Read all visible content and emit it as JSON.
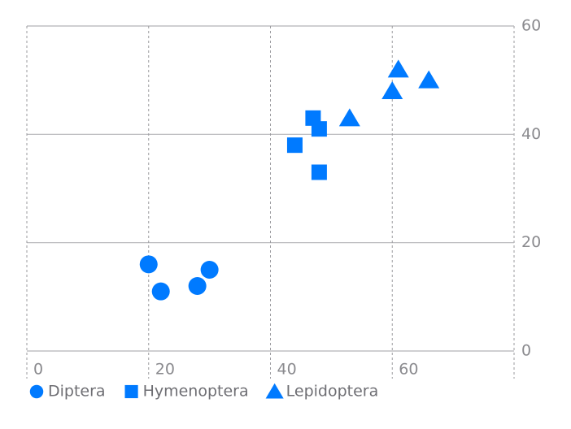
{
  "chart_data": {
    "type": "scatter",
    "series": [
      {
        "name": "Diptera",
        "color": "#007aff",
        "symbol": "circle",
        "x": [
          20,
          22,
          28,
          30
        ],
        "values": [
          16,
          11,
          12,
          15
        ]
      },
      {
        "name": "Hymenoptera",
        "color": "#007aff",
        "symbol": "square",
        "x": [
          47,
          48,
          44,
          48
        ],
        "values": [
          43,
          41,
          38,
          33
        ]
      },
      {
        "name": "Lepidoptera",
        "color": "#007aff",
        "symbol": "triangle",
        "x": [
          53,
          61,
          60,
          66
        ],
        "values": [
          43,
          52,
          48,
          50
        ]
      }
    ],
    "xlim": [
      0,
      80
    ],
    "xticks": [
      0,
      20,
      40,
      60
    ],
    "ylim": [
      0,
      60
    ],
    "yticks": [
      0,
      20,
      40,
      60
    ],
    "grid": true
  }
}
